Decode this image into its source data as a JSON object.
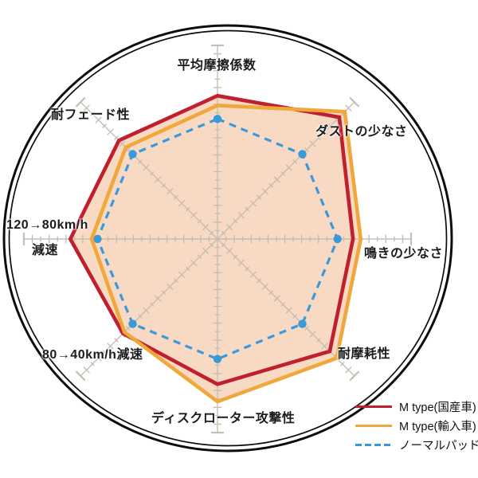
{
  "chart_data": {
    "type": "radar",
    "title": "",
    "categories": [
      "平均摩擦係数",
      "ダストの少なさ",
      "鳴きの少なさ",
      "耐摩耗性",
      "ディスクローター攻撃性",
      "80→40km/h減速",
      "120→80km/h減速",
      "耐フェード性"
    ],
    "series": [
      {
        "name": "M type(国産車)",
        "color": "#c0202e",
        "style": "solid",
        "values": [
          7.4,
          8.9,
          7.0,
          8.2,
          7.5,
          6.9,
          7.6,
          7.2
        ]
      },
      {
        "name": "M type(輸入車)",
        "color": "#f0a73c",
        "style": "solid",
        "values": [
          6.9,
          9.3,
          7.4,
          8.7,
          8.4,
          6.8,
          6.5,
          6.7
        ]
      },
      {
        "name": "ノーマルパッド",
        "color": "#3a9ad9",
        "style": "dashed",
        "values": [
          6.2,
          6.2,
          6.2,
          6.2,
          6.2,
          6.2,
          6.2,
          6.2
        ]
      }
    ],
    "scale": {
      "min": 0,
      "max": 10
    },
    "fill_color": "#f8d9c3",
    "grid": "8 spokes with ruler tick marks, T-cap at axis end",
    "legend_position": "bottom-right"
  },
  "axis_labels": {
    "top": "平均摩擦係数",
    "top_right": "ダストの少なさ",
    "right": "鳴きの少なさ",
    "bottom_right": "耐摩耗性",
    "bottom": "ディスクローター攻撃性",
    "bottom_left": "80→40km/h減速",
    "left_line1": "120→80km/h",
    "left_line2": "減速",
    "top_left": "耐フェード性"
  },
  "legend": {
    "items": [
      {
        "label": "M type(国産車)",
        "color": "#c0202e",
        "dashed": false
      },
      {
        "label": "M type(輸入車)",
        "color": "#f0a73c",
        "dashed": false
      },
      {
        "label": "ノーマルパッド",
        "color": "#3a9ad9",
        "dashed": true
      }
    ]
  }
}
